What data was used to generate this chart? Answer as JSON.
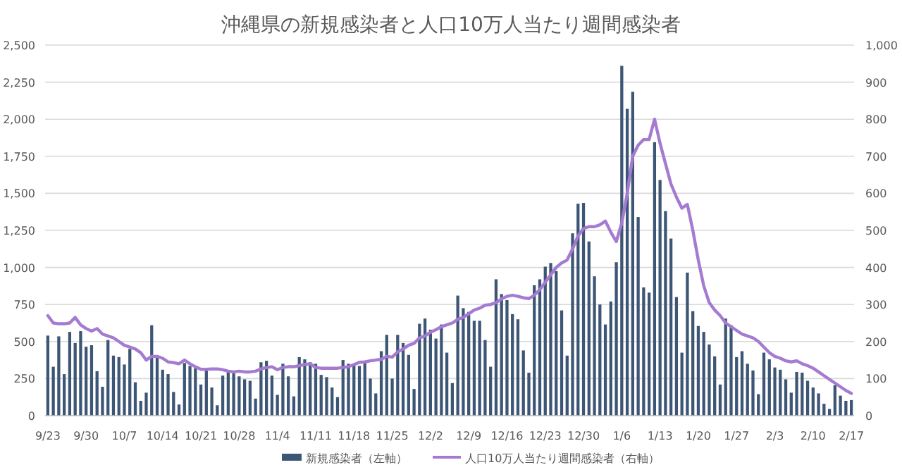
{
  "chart_data": {
    "type": "bar",
    "title": "沖縄県の新規感染者と人口10万人当たり週間感染者",
    "categories": [
      "9/23",
      null,
      null,
      null,
      null,
      null,
      null,
      "9/30",
      null,
      null,
      null,
      null,
      null,
      null,
      "10/7",
      null,
      null,
      null,
      null,
      null,
      null,
      "10/14",
      null,
      null,
      null,
      null,
      null,
      null,
      "10/21",
      null,
      null,
      null,
      null,
      null,
      null,
      "10/28",
      null,
      null,
      null,
      null,
      null,
      null,
      "11/4",
      null,
      null,
      null,
      null,
      null,
      null,
      "11/11",
      null,
      null,
      null,
      null,
      null,
      null,
      "11/18",
      null,
      null,
      null,
      null,
      null,
      null,
      "11/25",
      null,
      null,
      null,
      null,
      null,
      null,
      "12/2",
      null,
      null,
      null,
      null,
      null,
      null,
      "12/9",
      null,
      null,
      null,
      null,
      null,
      null,
      "12/16",
      null,
      null,
      null,
      null,
      null,
      null,
      "12/23",
      null,
      null,
      null,
      null,
      null,
      null,
      "12/30",
      null,
      null,
      null,
      null,
      null,
      null,
      "1/6",
      null,
      null,
      null,
      null,
      null,
      null,
      "1/13",
      null,
      null,
      null,
      null,
      null,
      null,
      "1/20",
      null,
      null,
      null,
      null,
      null,
      null,
      "1/27",
      null,
      null,
      null,
      null,
      null,
      null,
      "2/3",
      null,
      null,
      null,
      null,
      null,
      null,
      "2/10",
      null,
      null,
      null,
      null,
      null,
      null,
      "2/17"
    ],
    "series": [
      {
        "name": "新規感染者（左軸）",
        "color": "#3d5675",
        "values": [
          540,
          330,
          535,
          280,
          565,
          490,
          570,
          465,
          475,
          300,
          195,
          510,
          405,
          395,
          345,
          450,
          225,
          100,
          155,
          610,
          390,
          310,
          280,
          160,
          75,
          355,
          335,
          320,
          210,
          305,
          190,
          70,
          270,
          300,
          285,
          265,
          245,
          235,
          115,
          360,
          370,
          270,
          140,
          350,
          265,
          130,
          395,
          380,
          360,
          350,
          275,
          260,
          190,
          125,
          375,
          350,
          350,
          335,
          360,
          250,
          150,
          435,
          545,
          250,
          545,
          490,
          410,
          180,
          620,
          655,
          580,
          520,
          615,
          425,
          220,
          810,
          725,
          700,
          640,
          640,
          510,
          330,
          920,
          820,
          780,
          685,
          650,
          440,
          290,
          880,
          920,
          1005,
          1030,
          975,
          710,
          405,
          1230,
          1430,
          1435,
          1175,
          940,
          750,
          615,
          770,
          1035,
          2360,
          2070,
          2185,
          1340,
          865,
          830,
          1845,
          1590,
          1380,
          1195,
          800,
          425,
          965,
          705,
          605,
          565,
          480,
          400,
          210,
          655,
          610,
          395,
          435,
          350,
          305,
          145,
          425,
          380,
          325,
          310,
          245,
          155,
          295,
          290,
          235,
          190,
          150,
          80,
          45,
          205,
          135,
          100,
          105
        ]
      },
      {
        "name": "人口10万人当たり週間感染者（右軸）",
        "type": "line",
        "axis": "y2",
        "color": "#a47bd0",
        "values": [
          270,
          250,
          248,
          248,
          250,
          265,
          245,
          235,
          228,
          235,
          220,
          215,
          210,
          200,
          190,
          185,
          180,
          170,
          150,
          160,
          160,
          155,
          145,
          143,
          140,
          150,
          140,
          132,
          125,
          125,
          126,
          126,
          124,
          120,
          118,
          120,
          118,
          118,
          120,
          126,
          130,
          132,
          124,
          130,
          132,
          132,
          135,
          138,
          140,
          130,
          128,
          128,
          128,
          128,
          130,
          132,
          138,
          144,
          145,
          148,
          150,
          152,
          160,
          158,
          172,
          180,
          190,
          195,
          210,
          215,
          225,
          232,
          240,
          245,
          250,
          260,
          265,
          275,
          285,
          290,
          298,
          300,
          305,
          315,
          322,
          325,
          322,
          318,
          316,
          325,
          340,
          360,
          380,
          400,
          412,
          420,
          450,
          485,
          505,
          510,
          510,
          515,
          525,
          495,
          470,
          520,
          600,
          700,
          730,
          745,
          745,
          800,
          735,
          680,
          625,
          590,
          560,
          570,
          500,
          420,
          350,
          305,
          285,
          270,
          250,
          240,
          230,
          220,
          215,
          210,
          200,
          185,
          170,
          160,
          155,
          148,
          145,
          148,
          140,
          135,
          128,
          118,
          108,
          98,
          88,
          78,
          68,
          60
        ]
      }
    ],
    "ylim": [
      0,
      2500
    ],
    "yticks": [
      0,
      250,
      500,
      750,
      {
        "value": 1000,
        "label": "1,000"
      },
      {
        "value": 1250,
        "label": "1,250"
      },
      {
        "value": 1500,
        "label": "1,500"
      },
      {
        "value": 1750,
        "label": "1,750"
      },
      {
        "value": 2000,
        "label": "2,000"
      },
      {
        "value": 2250,
        "label": "2,250"
      },
      {
        "value": 2500,
        "label": "2,500"
      }
    ],
    "y2lim": [
      0,
      1000
    ],
    "y2ticks": [
      0,
      100,
      200,
      300,
      400,
      500,
      600,
      700,
      800,
      900,
      {
        "value": 1000,
        "label": "1,000"
      }
    ],
    "grid": "y",
    "legend": "bottom"
  }
}
